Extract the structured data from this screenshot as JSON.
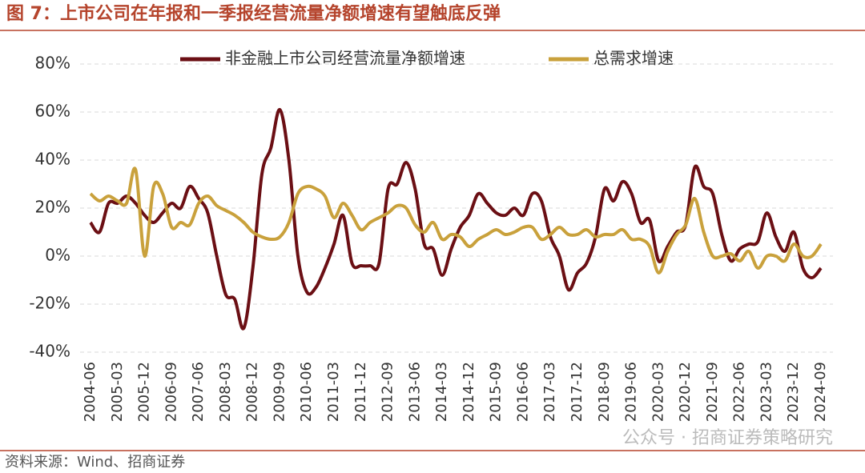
{
  "chart_data": {
    "type": "line",
    "title": "图 7：上市公司在年报和一季报经营流量净额增速有望触底反弹",
    "source": "资料来源：Wind、招商证券",
    "watermark": "公众号 · 招商证券策略研究",
    "categories": [
      "2004-06",
      null,
      null,
      "2005-03",
      null,
      null,
      "2005-12",
      null,
      null,
      "2006-09",
      null,
      null,
      "2007-06",
      null,
      null,
      "2008-03",
      null,
      null,
      "2008-12",
      null,
      null,
      "2009-09",
      null,
      null,
      "2010-06",
      null,
      null,
      "2011-03",
      null,
      null,
      "2011-12",
      null,
      null,
      "2012-09",
      null,
      null,
      "2013-06",
      null,
      null,
      "2014-03",
      null,
      null,
      "2014-12",
      null,
      null,
      "2015-09",
      null,
      null,
      "2016-06",
      null,
      null,
      "2017-03",
      null,
      null,
      "2017-12",
      null,
      null,
      "2018-09",
      null,
      null,
      "2019-06",
      null,
      null,
      "2020-03",
      null,
      null,
      "2020-12",
      null,
      null,
      "2021-09",
      null,
      null,
      "2022-06",
      null,
      null,
      "2023-03",
      null,
      null,
      "2023-12",
      null,
      null,
      "2024-09"
    ],
    "series": [
      {
        "name": "非金融上市公司经营流量净额增速",
        "color": "#6b0f14",
        "values": [
          14,
          10,
          22,
          22,
          25,
          22,
          17,
          14,
          18,
          22,
          20,
          29,
          24,
          18,
          0,
          -16,
          -18,
          -30,
          -5,
          34,
          45,
          61,
          40,
          0,
          -15,
          -13,
          -5,
          5,
          17,
          -3,
          -4,
          -4,
          -3,
          28,
          30,
          39,
          28,
          5,
          3,
          -8,
          3,
          12,
          17,
          26,
          22,
          18,
          17,
          20,
          17,
          26,
          23,
          8,
          0,
          -14,
          -7,
          -3,
          8,
          28,
          23,
          31,
          26,
          14,
          15,
          -2,
          4,
          10,
          13,
          37,
          29,
          26,
          9,
          -2,
          3,
          5,
          6,
          18,
          8,
          2,
          10,
          -5,
          -9,
          -5
        ]
      },
      {
        "name": "总需求增速",
        "color": "#c9a13c",
        "values": [
          26,
          23,
          25,
          23,
          22,
          36,
          0,
          29,
          26,
          12,
          14,
          13,
          22,
          25,
          21,
          19,
          17,
          14,
          10,
          8,
          7,
          8,
          14,
          26,
          29,
          28,
          25,
          16,
          22,
          17,
          11,
          14,
          16,
          18,
          21,
          20,
          13,
          10,
          14,
          7,
          9,
          8,
          4,
          7,
          9,
          11,
          9,
          10,
          12,
          12,
          7,
          9,
          12,
          9,
          9,
          11,
          8,
          9,
          9,
          11,
          7,
          7,
          4,
          -7,
          2,
          9,
          13,
          24,
          10,
          0,
          0,
          1,
          -2,
          2,
          -5,
          0,
          0,
          -2,
          5,
          0,
          0,
          5
        ]
      }
    ],
    "ylim": [
      -40,
      80
    ],
    "yticks": [
      {
        "value": -40,
        "label": "-40%"
      },
      {
        "value": -20,
        "label": "-20%"
      },
      {
        "value": 0,
        "label": "0%"
      },
      {
        "value": 20,
        "label": "20%"
      },
      {
        "value": 40,
        "label": "40%"
      },
      {
        "value": 60,
        "label": "60%"
      },
      {
        "value": 80,
        "label": "80%"
      }
    ],
    "grid": true,
    "legend": "top"
  }
}
